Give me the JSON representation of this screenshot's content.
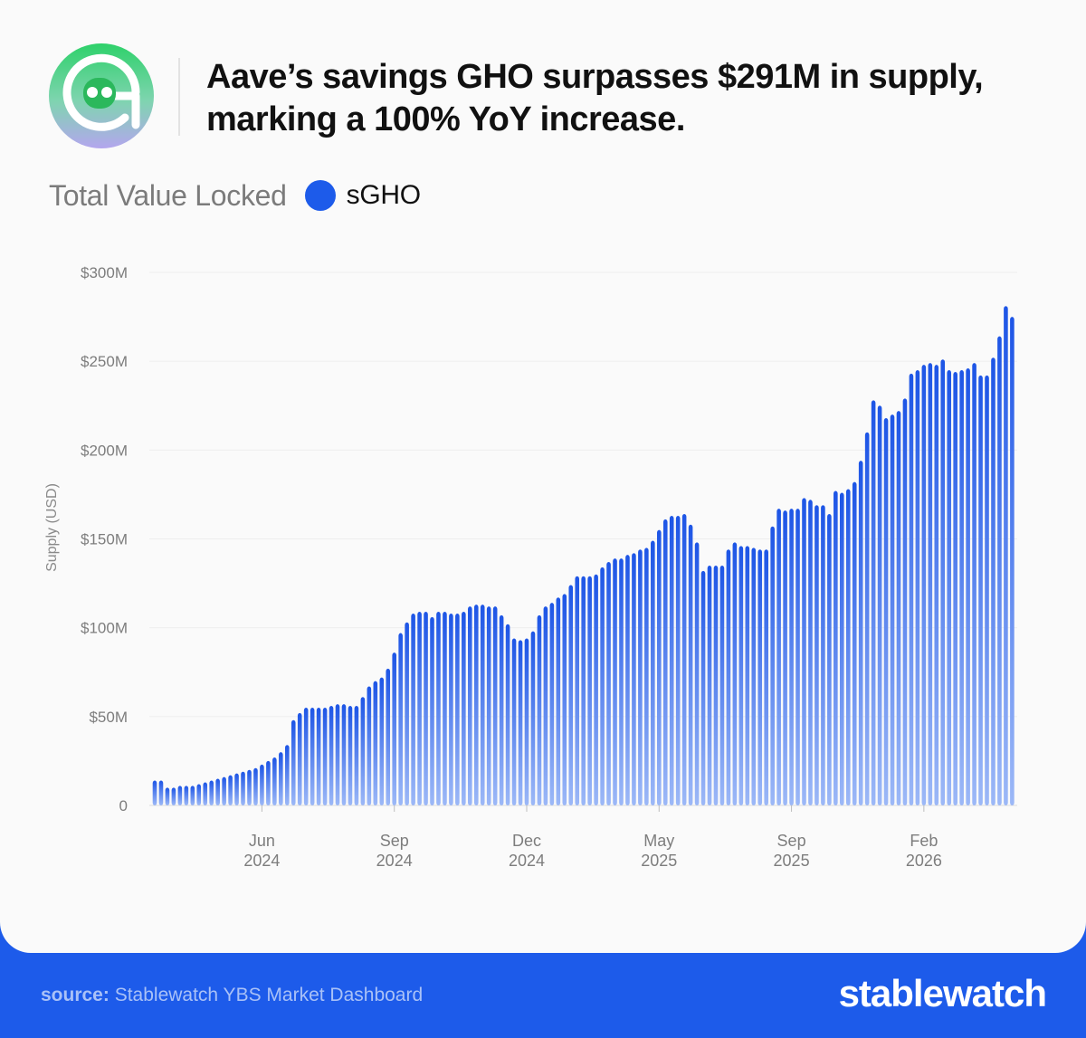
{
  "header": {
    "headline_line1": "Aave’s savings GHO surpasses $291M in supply,",
    "headline_line2": "marking a 100% YoY increase."
  },
  "legend": {
    "label": "Total Value Locked",
    "series_name": "sGHO",
    "series_color": "#1d5bea"
  },
  "footer": {
    "source_key": "source:",
    "source_text": "Stablewatch YBS Market Dashboard",
    "brand": "stablewatch"
  },
  "chart_data": {
    "type": "bar",
    "ylabel": "Supply (USD)",
    "ylim": [
      0,
      300
    ],
    "y_unit": "USD millions",
    "y_ticks": [
      {
        "value": 0,
        "label": "0"
      },
      {
        "value": 50,
        "label": "$50M"
      },
      {
        "value": 100,
        "label": "$100M"
      },
      {
        "value": 150,
        "label": "$150M"
      },
      {
        "value": 200,
        "label": "$200M"
      },
      {
        "value": 250,
        "label": "$250M"
      },
      {
        "value": 300,
        "label": "$300M"
      }
    ],
    "x_ticks": [
      {
        "index": 17,
        "month": "Jun",
        "year": "2024"
      },
      {
        "index": 38,
        "month": "Sep",
        "year": "2024"
      },
      {
        "index": 59,
        "month": "Dec",
        "year": "2024"
      },
      {
        "index": 80,
        "month": "May",
        "year": "2025"
      },
      {
        "index": 101,
        "month": "Sep",
        "year": "2025"
      },
      {
        "index": 122,
        "month": "Feb",
        "year": "2026"
      }
    ],
    "grid": true,
    "values": [
      14,
      14,
      10,
      10,
      11,
      11,
      11,
      12,
      13,
      14,
      15,
      16,
      17,
      18,
      19,
      20,
      21,
      23,
      25,
      27,
      30,
      34,
      48,
      52,
      55,
      55,
      55,
      55,
      56,
      57,
      57,
      56,
      56,
      61,
      67,
      70,
      72,
      77,
      86,
      97,
      103,
      108,
      109,
      109,
      106,
      109,
      109,
      108,
      108,
      109,
      112,
      113,
      113,
      112,
      112,
      107,
      102,
      94,
      93,
      94,
      98,
      107,
      112,
      114,
      117,
      119,
      124,
      129,
      129,
      129,
      130,
      134,
      137,
      139,
      139,
      141,
      142,
      144,
      145,
      149,
      155,
      161,
      163,
      163,
      164,
      158,
      148,
      132,
      135,
      135,
      135,
      144,
      148,
      146,
      146,
      145,
      144,
      144,
      157,
      167,
      166,
      167,
      167,
      173,
      172,
      169,
      169,
      164,
      177,
      176,
      178,
      182,
      194,
      210,
      228,
      225,
      218,
      220,
      222,
      229,
      243,
      245,
      248,
      249,
      248,
      251,
      245,
      244,
      245,
      246,
      249,
      242,
      242,
      252,
      264,
      281,
      275
    ]
  }
}
